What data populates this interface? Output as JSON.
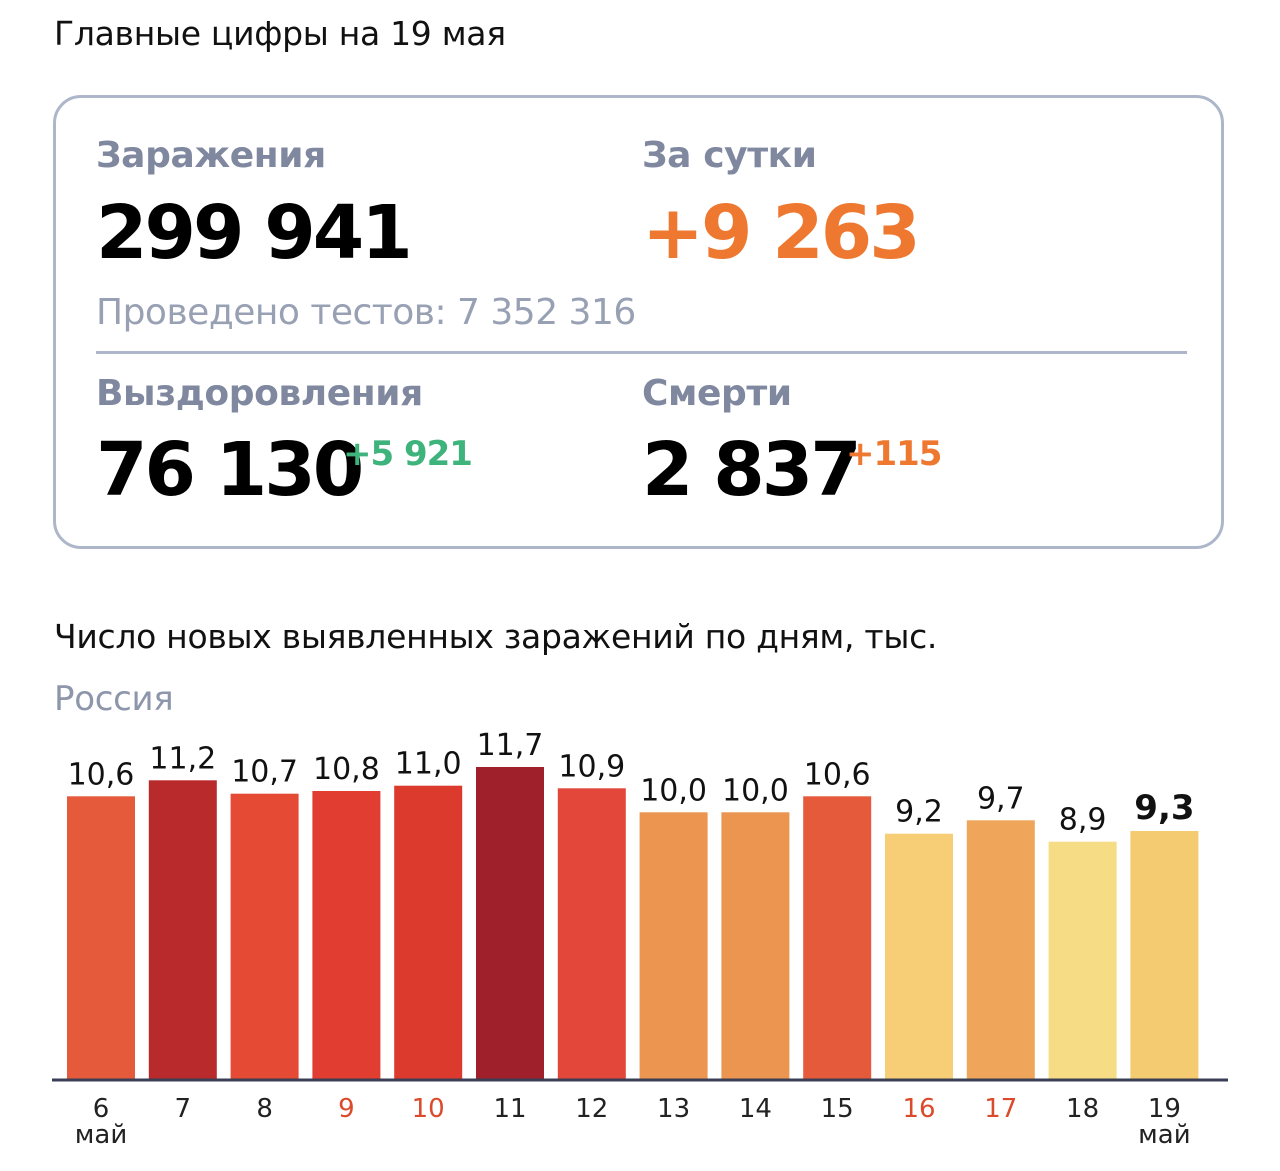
{
  "heading": "Главные цифры на 19 мая",
  "summary": {
    "infections": {
      "label": "Заражения",
      "value": "299 941"
    },
    "daily": {
      "label": "За сутки",
      "value": "+9 263"
    },
    "tests": "Проведено тестов: 7 352 316",
    "recoveries": {
      "label": "Выздоровления",
      "value": "76 130",
      "delta": "+5 921"
    },
    "deaths": {
      "label": "Смерти",
      "value": "2 837",
      "delta": "+115"
    }
  },
  "colors": {
    "accent_orange": "#ef7830",
    "accent_green": "#3eb37b",
    "label_gray": "#7f889f",
    "weekend_red": "#dc4a2c"
  },
  "chart_data": {
    "type": "bar",
    "title": "Число новых выявленных заражений по дням, тыс.",
    "subtitle": "Россия",
    "categories": [
      "6",
      "7",
      "8",
      "9",
      "10",
      "11",
      "12",
      "13",
      "14",
      "15",
      "16",
      "17",
      "18",
      "19"
    ],
    "category_sublabels": [
      "май",
      "",
      "",
      "",
      "",
      "",
      "",
      "",
      "",
      "",
      "",
      "",
      "",
      "май"
    ],
    "weekend_categories": [
      "9",
      "10",
      "16",
      "17"
    ],
    "values": [
      10.6,
      11.2,
      10.7,
      10.8,
      11.0,
      11.7,
      10.9,
      10.0,
      10.0,
      10.6,
      9.2,
      9.7,
      8.9,
      9.3
    ],
    "value_labels": [
      "10,6",
      "11,2",
      "10,7",
      "10,8",
      "11,0",
      "11,7",
      "10,9",
      "10,0",
      "10,0",
      "10,6",
      "9,2",
      "9,7",
      "8,9",
      "9,3"
    ],
    "bar_colors": [
      "#e55a3b",
      "#b82a2c",
      "#e44a34",
      "#e23d31",
      "#dd3a2e",
      "#9f1f2b",
      "#e2473a",
      "#ec9550",
      "#ec9550",
      "#e55a3b",
      "#f7ce75",
      "#efa65a",
      "#f6dc85",
      "#f4cb70"
    ],
    "highlight_index": 13,
    "ylim": [
      0,
      11.7
    ]
  }
}
